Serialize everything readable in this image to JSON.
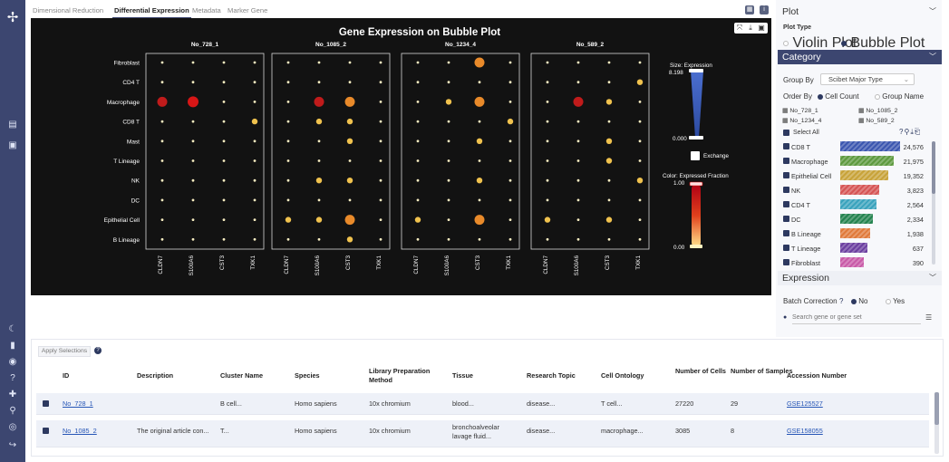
{
  "tabs": [
    "Dimensional Reduction",
    "Differential Expression",
    "Metadata",
    "Marker Gene"
  ],
  "active_tab": "Differential Expression",
  "icons": {
    "logo": "molecule-logo-icon",
    "rail": [
      "molecule-icon",
      "beaker-icon",
      "moon-icon",
      "document-icon",
      "github-icon",
      "help-icon",
      "puzzle-icon",
      "person-search-icon",
      "graduation-icon",
      "logout-icon"
    ],
    "toolbar": [
      "grid-view-icon",
      "info-icon"
    ]
  },
  "plot": {
    "title": "Gene Expression on Bubble Plot",
    "tools": [
      "⤧",
      "⤓",
      "▣"
    ],
    "panels": [
      "No_728_1",
      "No_1085_2",
      "No_1234_4",
      "No_589_2"
    ],
    "rows": [
      "Fibroblast",
      "CD4 T",
      "Macrophage",
      "CD8 T",
      "Mast",
      "T Lineage",
      "NK",
      "DC",
      "Epithelial Cell",
      "B Lineage"
    ],
    "genes": [
      "CLDN7",
      "S100A6",
      "CST3",
      "TXK1"
    ],
    "bubbles": [
      [
        [
          0,
          0,
          0,
          0
        ],
        [
          0,
          0,
          0,
          0
        ],
        [
          2,
          3,
          0,
          0
        ],
        [
          0,
          0,
          0,
          1
        ],
        [
          0,
          0,
          0,
          0
        ],
        [
          0,
          0,
          0,
          0
        ],
        [
          0,
          0,
          0,
          0
        ],
        [
          0,
          0,
          0,
          0
        ],
        [
          0,
          0,
          0,
          0
        ],
        [
          0,
          0,
          0,
          0
        ]
      ],
      [
        [
          0,
          0,
          0,
          0
        ],
        [
          0,
          0,
          0,
          0
        ],
        [
          0,
          2,
          2,
          0
        ],
        [
          0,
          1,
          1,
          0
        ],
        [
          0,
          0,
          1,
          0
        ],
        [
          0,
          0,
          0,
          0
        ],
        [
          0,
          1,
          1,
          0
        ],
        [
          0,
          0,
          0,
          0
        ],
        [
          1,
          1,
          2,
          0
        ],
        [
          0,
          0,
          1,
          0
        ]
      ],
      [
        [
          0,
          0,
          2,
          0
        ],
        [
          0,
          0,
          0,
          0
        ],
        [
          0,
          1,
          2,
          0
        ],
        [
          0,
          0,
          0,
          1
        ],
        [
          0,
          0,
          1,
          0
        ],
        [
          0,
          0,
          0,
          0
        ],
        [
          0,
          0,
          1,
          0
        ],
        [
          0,
          0,
          0,
          0
        ],
        [
          1,
          0,
          2,
          0
        ],
        [
          0,
          0,
          0,
          0
        ]
      ],
      [
        [
          0,
          0,
          0,
          0
        ],
        [
          0,
          0,
          0,
          1
        ],
        [
          0,
          2,
          1,
          0
        ],
        [
          0,
          0,
          0,
          0
        ],
        [
          0,
          0,
          1,
          0
        ],
        [
          0,
          0,
          1,
          0
        ],
        [
          0,
          0,
          0,
          1
        ],
        [
          0,
          0,
          0,
          0
        ],
        [
          1,
          0,
          1,
          0
        ],
        [
          0,
          0,
          0,
          0
        ]
      ]
    ],
    "size_legend": {
      "title": "Size: Expression",
      "max": "8.198",
      "min": "0.000"
    },
    "exchange_label": "Exchange",
    "color_legend": {
      "title": "Color: Expressed Fraction",
      "max": "1.00",
      "min": "0.00"
    }
  },
  "right": {
    "plot_header": "Plot",
    "plot_type_label": "Plot Type",
    "plot_types": [
      "Violin Plot",
      "Bubble Plot"
    ],
    "category_header": "Category",
    "group_by_label": "Group By",
    "group_by_value": "Scibet Major Type",
    "order_by_label": "Order By",
    "order_options": [
      "Cell Count",
      "Group Name"
    ],
    "samples": [
      "No_728_1",
      "No_1085_2",
      "No_1234_4",
      "No_589_2"
    ],
    "select_all": "Select All",
    "categories": [
      {
        "name": "CD8 T",
        "count": "24,576",
        "color": "#3c57b0",
        "fill": 1.0
      },
      {
        "name": "Macrophage",
        "count": "21,975",
        "color": "#5e9a3f",
        "fill": 0.9
      },
      {
        "name": "Epithelial Cell",
        "count": "19,352",
        "color": "#c8a33a",
        "fill": 0.8
      },
      {
        "name": "NK",
        "count": "3,823",
        "color": "#d65555",
        "fill": 0.65
      },
      {
        "name": "CD4 T",
        "count": "2,564",
        "color": "#3aa3bd",
        "fill": 0.6
      },
      {
        "name": "DC",
        "count": "2,334",
        "color": "#24834f",
        "fill": 0.55
      },
      {
        "name": "B Lineage",
        "count": "1,938",
        "color": "#e07a3b",
        "fill": 0.5
      },
      {
        "name": "T Lineage",
        "count": "637",
        "color": "#6b3fa0",
        "fill": 0.45
      },
      {
        "name": "Fibroblast",
        "count": "390",
        "color": "#c95aa8",
        "fill": 0.4
      }
    ],
    "expression_header": "Expression",
    "batch_label": "Batch Correction",
    "batch_options": [
      "No",
      "Yes"
    ],
    "search_placeholder": "Search gene or gene set"
  },
  "bottom": {
    "apply_label": "Apply Selections",
    "headers": [
      "ID",
      "Description",
      "Cluster Name",
      "Species",
      "Library Preparation Method",
      "Tissue",
      "Research Topic",
      "Cell Ontology",
      "Number of Cells",
      "Number of Samples",
      "Accession Number"
    ],
    "rows": [
      [
        "No_728_1",
        "",
        "B cell...",
        "Homo sapiens",
        "10x chromium",
        "blood...",
        "disease...",
        "T cell...",
        "27220",
        "29",
        "GSE125527"
      ],
      [
        "No_1085_2",
        "The original article con...",
        "T...",
        "Homo sapiens",
        "10x chromium",
        "bronchoalveolar lavage fluid...",
        "disease...",
        "macrophage...",
        "3085",
        "8",
        "GSE158055"
      ]
    ]
  }
}
